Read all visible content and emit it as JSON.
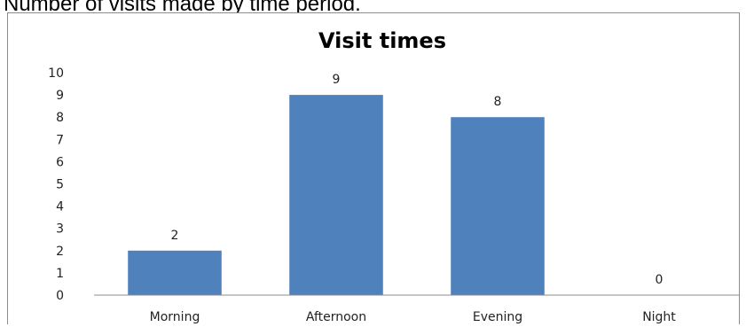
{
  "caption": "Number of visits made by time period.",
  "chart_data": {
    "type": "bar",
    "title": "Visit times",
    "categories": [
      "Morning",
      "Afternoon",
      "Evening",
      "Night"
    ],
    "values": [
      2,
      9,
      8,
      0
    ],
    "data_labels": [
      "2",
      "9",
      "8",
      "0"
    ],
    "ylim": [
      0,
      10
    ],
    "yticks": [
      "0",
      "1",
      "2",
      "3",
      "4",
      "5",
      "6",
      "7",
      "8",
      "9",
      "10"
    ],
    "xlabel": "",
    "ylabel": "",
    "grid": false,
    "legend": "none",
    "bar_color": "#4f81bd"
  }
}
